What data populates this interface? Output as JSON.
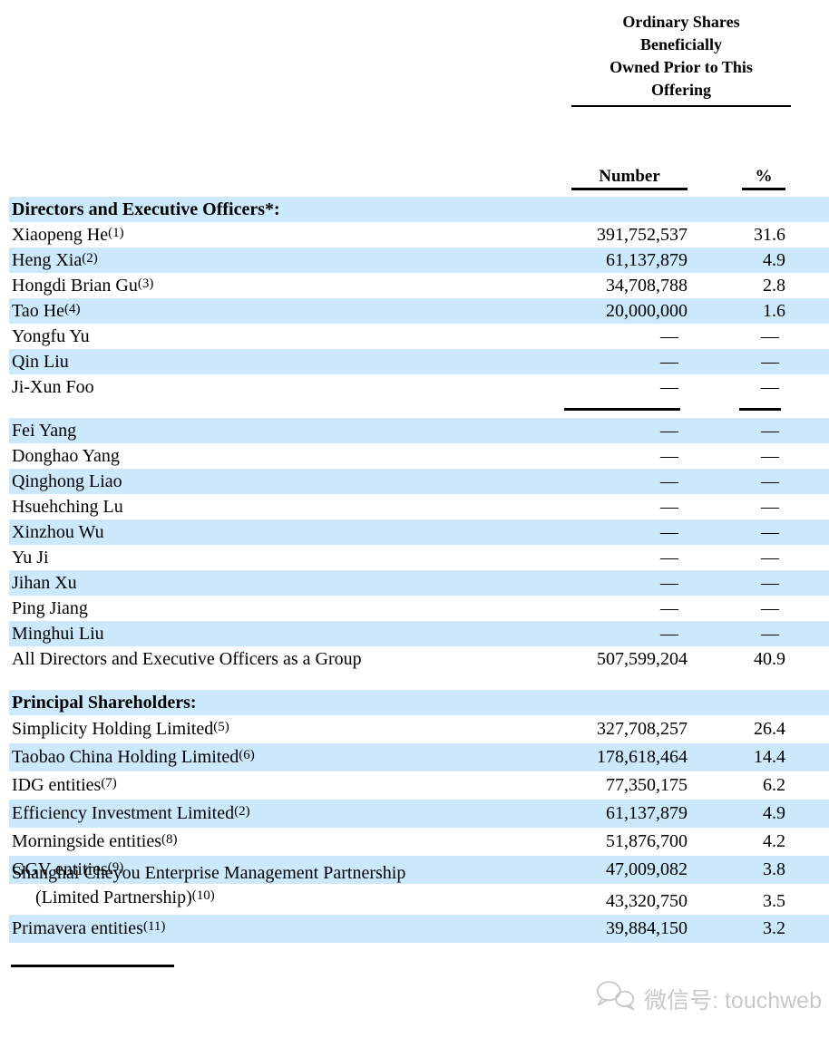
{
  "header": {
    "group_title_lines": [
      "Ordinary Shares",
      "Beneficially",
      "Owned Prior to This",
      "Offering"
    ],
    "col_number": "Number",
    "col_percent": "%"
  },
  "table": {
    "sections": [
      {
        "title": "Directors and Executive Officers*:",
        "rows": [
          {
            "name": "Xiaopeng He",
            "sup": "(1)",
            "number": "391,752,537",
            "pct": "31.6"
          },
          {
            "name": "Heng Xia",
            "sup": "(2)",
            "number": "61,137,879",
            "pct": "4.9"
          },
          {
            "name": "Hongdi Brian Gu",
            "sup": "(3)",
            "number": "34,708,788",
            "pct": "2.8"
          },
          {
            "name": "Tao He",
            "sup": "(4)",
            "number": "20,000,000",
            "pct": "1.6"
          },
          {
            "name": "Yongfu Yu",
            "number": "—",
            "pct": "—"
          },
          {
            "name": "Qin Liu",
            "number": "—",
            "pct": "—"
          },
          {
            "name": "Ji-Xun Foo",
            "number": "—",
            "pct": "—",
            "rule_after": true
          },
          {
            "name": "Fei Yang",
            "number": "—",
            "pct": "—"
          },
          {
            "name": "Donghao Yang",
            "number": "—",
            "pct": "—"
          },
          {
            "name": "Qinghong Liao",
            "number": "—",
            "pct": "—"
          },
          {
            "name": "Hsuehching Lu",
            "number": "—",
            "pct": "—"
          },
          {
            "name": "Xinzhou Wu",
            "number": "—",
            "pct": "—"
          },
          {
            "name": "Yu Ji",
            "number": "—",
            "pct": "—"
          },
          {
            "name": "Jihan Xu",
            "number": "—",
            "pct": "—"
          },
          {
            "name": "Ping Jiang",
            "number": "—",
            "pct": "—"
          },
          {
            "name": "Minghui Liu",
            "number": "—",
            "pct": "—"
          },
          {
            "name": "All Directors and Executive Officers as a Group",
            "number": "507,599,204",
            "pct": "40.9"
          }
        ]
      },
      {
        "title": "Principal Shareholders:",
        "rows": [
          {
            "name": "Simplicity Holding Limited",
            "sup": "(5)",
            "number": "327,708,257",
            "pct": "26.4"
          },
          {
            "name": "Taobao China Holding Limited",
            "sup": "(6)",
            "number": "178,618,464",
            "pct": "14.4"
          },
          {
            "name": "IDG entities",
            "sup": "(7)",
            "number": "77,350,175",
            "pct": "6.2"
          },
          {
            "name": "Efficiency Investment Limited",
            "sup": "(2)",
            "number": "61,137,879",
            "pct": "4.9"
          },
          {
            "name": "Morningside entities",
            "sup": "(8)",
            "number": "51,876,700",
            "pct": "4.2"
          },
          {
            "name": "GGV entities",
            "sup": "(9)",
            "number": "47,009,082",
            "pct": "3.8"
          },
          {
            "name": "Shanghai Cheyou Enterprise Management Partnership",
            "name2": "(Limited Partnership)",
            "sup2": "(10)",
            "number": "43,320,750",
            "pct": "3.5"
          },
          {
            "name": "Primavera entities",
            "sup": "(11)",
            "number": "39,884,150",
            "pct": "3.2"
          }
        ]
      }
    ]
  },
  "watermark": {
    "icon": "wechat-icon",
    "text": "微信号: touchweb"
  }
}
